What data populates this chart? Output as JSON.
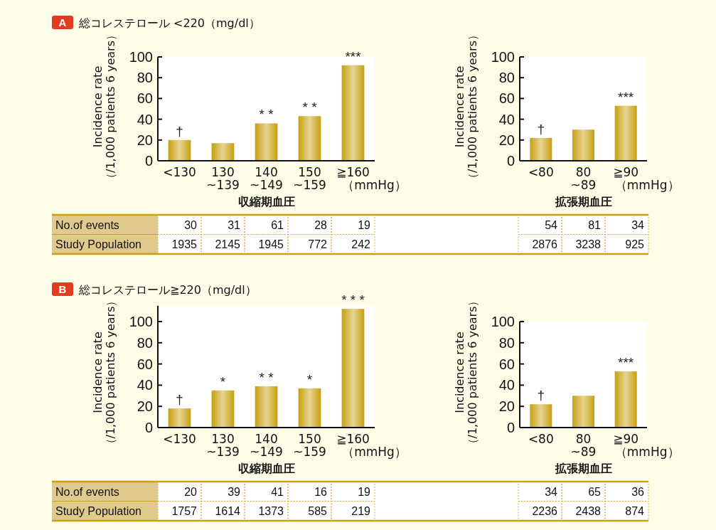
{
  "chart_data": [
    {
      "type": "bar",
      "title": "A",
      "subtitle": "総コレステロール <220（mg/dl）",
      "ylabel": "Incidence rate\n（/1,000 patients 6 years）",
      "xlabel": "収縮期血圧",
      "categories": [
        "<130",
        "130\n~139",
        "140\n~149",
        "150\n~159",
        "≧160"
      ],
      "values": [
        20,
        17,
        36,
        43,
        92
      ],
      "color": "#c8a010",
      "value_labels": [
        "†",
        null,
        "* *",
        "* *",
        "***"
      ],
      "ylim": [
        0,
        100
      ],
      "yticks": [
        0,
        20,
        40,
        60,
        80,
        100
      ],
      "annotations": [
        "（mmHg）"
      ]
    },
    {
      "type": "bar",
      "ylabel": "Incidence rate\n（/1,000 patients 6 years）",
      "xlabel": "拡張期血圧",
      "categories": [
        "<80",
        "80\n~89",
        "≧90"
      ],
      "values": [
        22,
        30,
        53
      ],
      "color": "#c8a010",
      "value_labels": [
        "†",
        null,
        "***"
      ],
      "ylim": [
        0,
        100
      ],
      "yticks": [
        0,
        20,
        40,
        60,
        80,
        100
      ],
      "annotations": [
        "（mmHg）"
      ]
    },
    {
      "type": "other",
      "annotations": [
        "No.of events",
        "30",
        "31",
        "61",
        "28",
        "19",
        "Study Population",
        "1935",
        "2145",
        "1945",
        "772",
        "242"
      ]
    },
    {
      "type": "other",
      "annotations": [
        "54",
        "81",
        "34",
        "2876",
        "3238",
        "925"
      ]
    },
    {
      "type": "bar",
      "title": "B",
      "subtitle": "総コレステロール≧220（mg/dl）",
      "ylabel": "Incidence rate\n（/1,000 patients 6 years）",
      "xlabel": "収縮期血圧",
      "categories": [
        "<130",
        "130\n~139",
        "140\n~149",
        "150\n~159",
        "≧160"
      ],
      "values": [
        18,
        35,
        39,
        37,
        112
      ],
      "color": "#c8a010",
      "value_labels": [
        "†",
        "*",
        "* *",
        "*",
        "* * *"
      ],
      "ylim": [
        0,
        115
      ],
      "yticks": [
        0,
        20,
        40,
        60,
        80,
        100
      ],
      "annotations": [
        "（mmHg）"
      ]
    },
    {
      "type": "bar",
      "ylabel": "Incidence rate\n（/1,000 patients 6 years）",
      "xlabel": "拡張期血圧",
      "categories": [
        "<80",
        "80\n~89",
        "≧90"
      ],
      "values": [
        22,
        30,
        53
      ],
      "color": "#c8a010",
      "value_labels": [
        "†",
        null,
        "***"
      ],
      "ylim": [
        0,
        100
      ],
      "yticks": [
        0,
        20,
        40,
        60,
        80,
        100
      ],
      "annotations": [
        "（mmHg）"
      ]
    },
    {
      "type": "other",
      "annotations": [
        "No.of events",
        "20",
        "39",
        "41",
        "16",
        "19",
        "Study Population",
        "1757",
        "1614",
        "1373",
        "585",
        "219"
      ]
    },
    {
      "type": "other",
      "annotations": [
        "34",
        "65",
        "36",
        "2236",
        "2438",
        "874"
      ]
    }
  ]
}
